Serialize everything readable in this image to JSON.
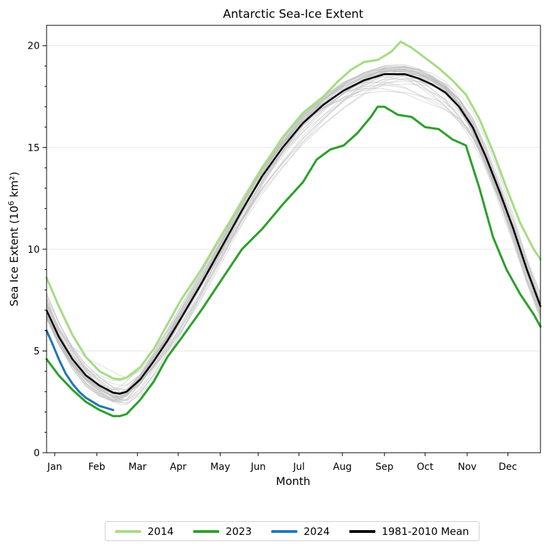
{
  "chart_data": {
    "type": "line",
    "title": "Antarctic Sea-Ice Extent",
    "xlabel": "Month",
    "ylabel_prefix": "Sea Ice Extent (10",
    "ylabel_sup": "6",
    "ylabel_suffix": " km²)",
    "xlim": [
      1,
      365
    ],
    "ylim": [
      0,
      21
    ],
    "grid": true,
    "legend_position": "bottom-center",
    "month_ticks": [
      {
        "label": "Jan",
        "day": 7
      },
      {
        "label": "Feb",
        "day": 38
      },
      {
        "label": "Mar",
        "day": 68
      },
      {
        "label": "Apr",
        "day": 98
      },
      {
        "label": "May",
        "day": 129
      },
      {
        "label": "Jun",
        "day": 157
      },
      {
        "label": "Jul",
        "day": 187
      },
      {
        "label": "Aug",
        "day": 219
      },
      {
        "label": "Sep",
        "day": 250
      },
      {
        "label": "Oct",
        "day": 280
      },
      {
        "label": "Nov",
        "day": 311
      },
      {
        "label": "Dec",
        "day": 341
      }
    ],
    "y_ticks": [
      0,
      5,
      10,
      15,
      20
    ],
    "background_years": {
      "color": "#bdbdbd",
      "description_count": 40
    },
    "series": [
      {
        "name": "2014",
        "color": "#a6dc85",
        "x": [
          1,
          10,
          20,
          30,
          40,
          50,
          55,
          60,
          70,
          80,
          90,
          100,
          115,
          130,
          145,
          160,
          175,
          190,
          205,
          215,
          225,
          235,
          245,
          255,
          262,
          270,
          280,
          290,
          300,
          310,
          320,
          330,
          340,
          350,
          360,
          365
        ],
        "y": [
          8.6,
          7.2,
          5.8,
          4.7,
          4.0,
          3.65,
          3.6,
          3.7,
          4.2,
          5.1,
          6.3,
          7.5,
          9.0,
          10.7,
          12.3,
          14.0,
          15.5,
          16.7,
          17.5,
          18.2,
          18.8,
          19.2,
          19.3,
          19.7,
          20.2,
          19.9,
          19.4,
          18.9,
          18.3,
          17.6,
          16.4,
          14.8,
          13.0,
          11.3,
          10.0,
          9.5
        ]
      },
      {
        "name": "2023",
        "color": "#2ca02c",
        "x": [
          1,
          10,
          20,
          30,
          40,
          50,
          55,
          60,
          70,
          80,
          90,
          100,
          115,
          130,
          145,
          160,
          175,
          190,
          200,
          210,
          220,
          230,
          240,
          245,
          250,
          255,
          260,
          270,
          280,
          290,
          300,
          310,
          320,
          330,
          340,
          350,
          360,
          365
        ],
        "y": [
          4.6,
          3.8,
          3.1,
          2.5,
          2.1,
          1.8,
          1.8,
          1.9,
          2.6,
          3.5,
          4.7,
          5.6,
          7.0,
          8.5,
          10.0,
          11.0,
          12.2,
          13.3,
          14.4,
          14.9,
          15.1,
          15.7,
          16.5,
          17.0,
          17.0,
          16.8,
          16.6,
          16.5,
          16.0,
          15.9,
          15.4,
          15.1,
          13.0,
          10.6,
          9.0,
          7.8,
          6.8,
          6.2
        ]
      },
      {
        "name": "2024",
        "color": "#1f77b4",
        "x": [
          1,
          5,
          10,
          15,
          20,
          25,
          30,
          35,
          40,
          45,
          50
        ],
        "y": [
          6.0,
          5.4,
          4.6,
          3.9,
          3.4,
          3.0,
          2.7,
          2.5,
          2.3,
          2.2,
          2.1
        ]
      },
      {
        "name": "1981-2010 Mean",
        "color": "#000000",
        "x": [
          1,
          10,
          20,
          30,
          40,
          50,
          55,
          60,
          70,
          80,
          90,
          100,
          115,
          130,
          145,
          160,
          175,
          190,
          205,
          220,
          235,
          250,
          265,
          275,
          285,
          295,
          305,
          315,
          325,
          335,
          345,
          355,
          365
        ],
        "y": [
          7.0,
          5.7,
          4.6,
          3.8,
          3.3,
          2.95,
          2.9,
          3.0,
          3.6,
          4.5,
          5.5,
          6.6,
          8.3,
          10.1,
          11.9,
          13.6,
          15.0,
          16.2,
          17.1,
          17.8,
          18.3,
          18.6,
          18.6,
          18.4,
          18.1,
          17.7,
          17.0,
          16.0,
          14.5,
          12.8,
          11.0,
          9.0,
          7.2
        ]
      }
    ]
  }
}
